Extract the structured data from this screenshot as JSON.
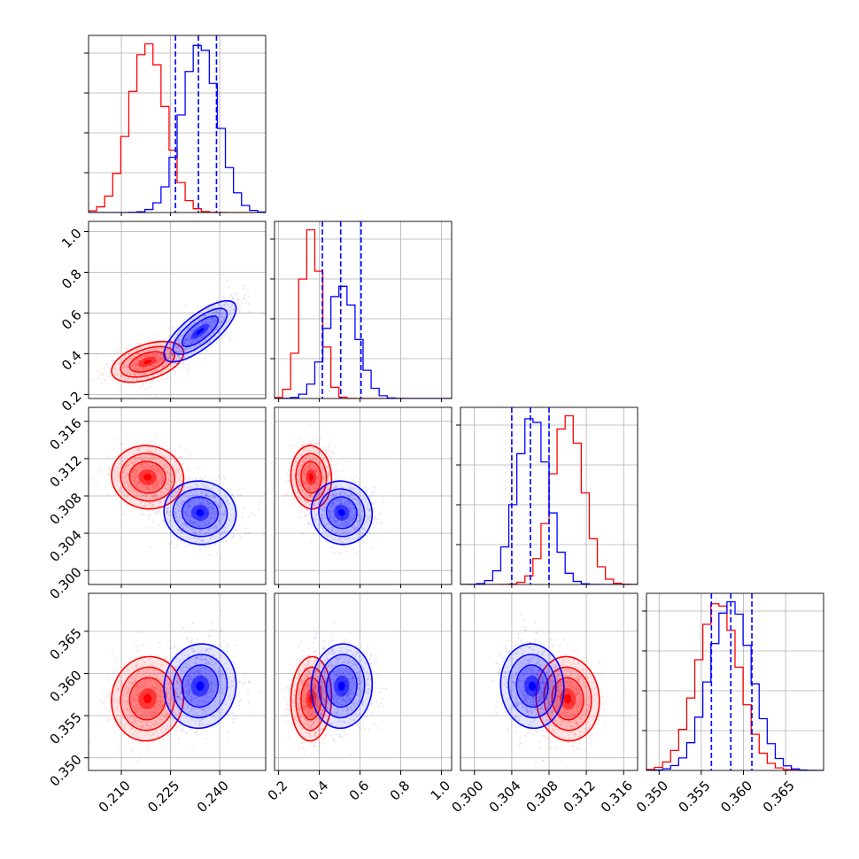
{
  "colors": {
    "red": "#ff0000",
    "blue": "#0000ff",
    "grid": "#b0b0b0"
  },
  "chart_data": {
    "type": "corner",
    "grid": true,
    "series": [
      {
        "color": "#ff0000",
        "stats": {
          "means": [
            0.218,
            0.36,
            0.31,
            0.357
          ],
          "sds": [
            0.0055,
            0.05,
            0.0017,
            0.0025
          ],
          "corr": [
            [
              1,
              0.45,
              -0.05,
              0.05
            ],
            [
              0.45,
              1,
              -0.05,
              0.05
            ],
            [
              -0.05,
              -0.05,
              1,
              -0.05
            ],
            [
              0.05,
              0.05,
              -0.05,
              1
            ]
          ]
        }
      },
      {
        "color": "#0000ff",
        "stats": {
          "means": [
            0.234,
            0.51,
            0.3062,
            0.3585
          ],
          "sds": [
            0.0055,
            0.075,
            0.0017,
            0.0025
          ],
          "corr": [
            [
              1,
              0.75,
              -0.05,
              0.05
            ],
            [
              0.75,
              1,
              -0.05,
              0.05
            ],
            [
              -0.05,
              -0.05,
              1,
              -0.05
            ],
            [
              0.05,
              0.05,
              -0.05,
              1
            ]
          ]
        },
        "quantile_lines": [
          [
            0.2265,
            0.2335,
            0.239
          ],
          [
            0.415,
            0.505,
            0.605
          ],
          [
            0.304,
            0.306,
            0.308
          ],
          [
            0.3562,
            0.3585,
            0.361
          ]
        ]
      }
    ],
    "parameters": [
      {
        "range": [
          0.2,
          0.254
        ],
        "ticks": [
          0.21,
          0.225,
          0.24
        ],
        "tick_labels": [
          "0.210",
          "0.225",
          "0.240"
        ]
      },
      {
        "range": [
          0.18,
          1.05
        ],
        "ticks": [
          0.2,
          0.4,
          0.6,
          0.8,
          1.0
        ],
        "tick_labels": [
          "0.2",
          "0.4",
          "0.6",
          "0.8",
          "1.0"
        ]
      },
      {
        "range": [
          0.2985,
          0.3175
        ],
        "ticks": [
          0.3,
          0.304,
          0.308,
          0.312,
          0.316
        ],
        "tick_labels": [
          "0.300",
          "0.304",
          "0.308",
          "0.312",
          "0.316"
        ]
      },
      {
        "range": [
          0.3485,
          0.3695
        ],
        "ticks": [
          0.35,
          0.355,
          0.36,
          0.365
        ],
        "tick_labels": [
          "0.350",
          "0.355",
          "0.360",
          "0.365"
        ]
      }
    ]
  }
}
